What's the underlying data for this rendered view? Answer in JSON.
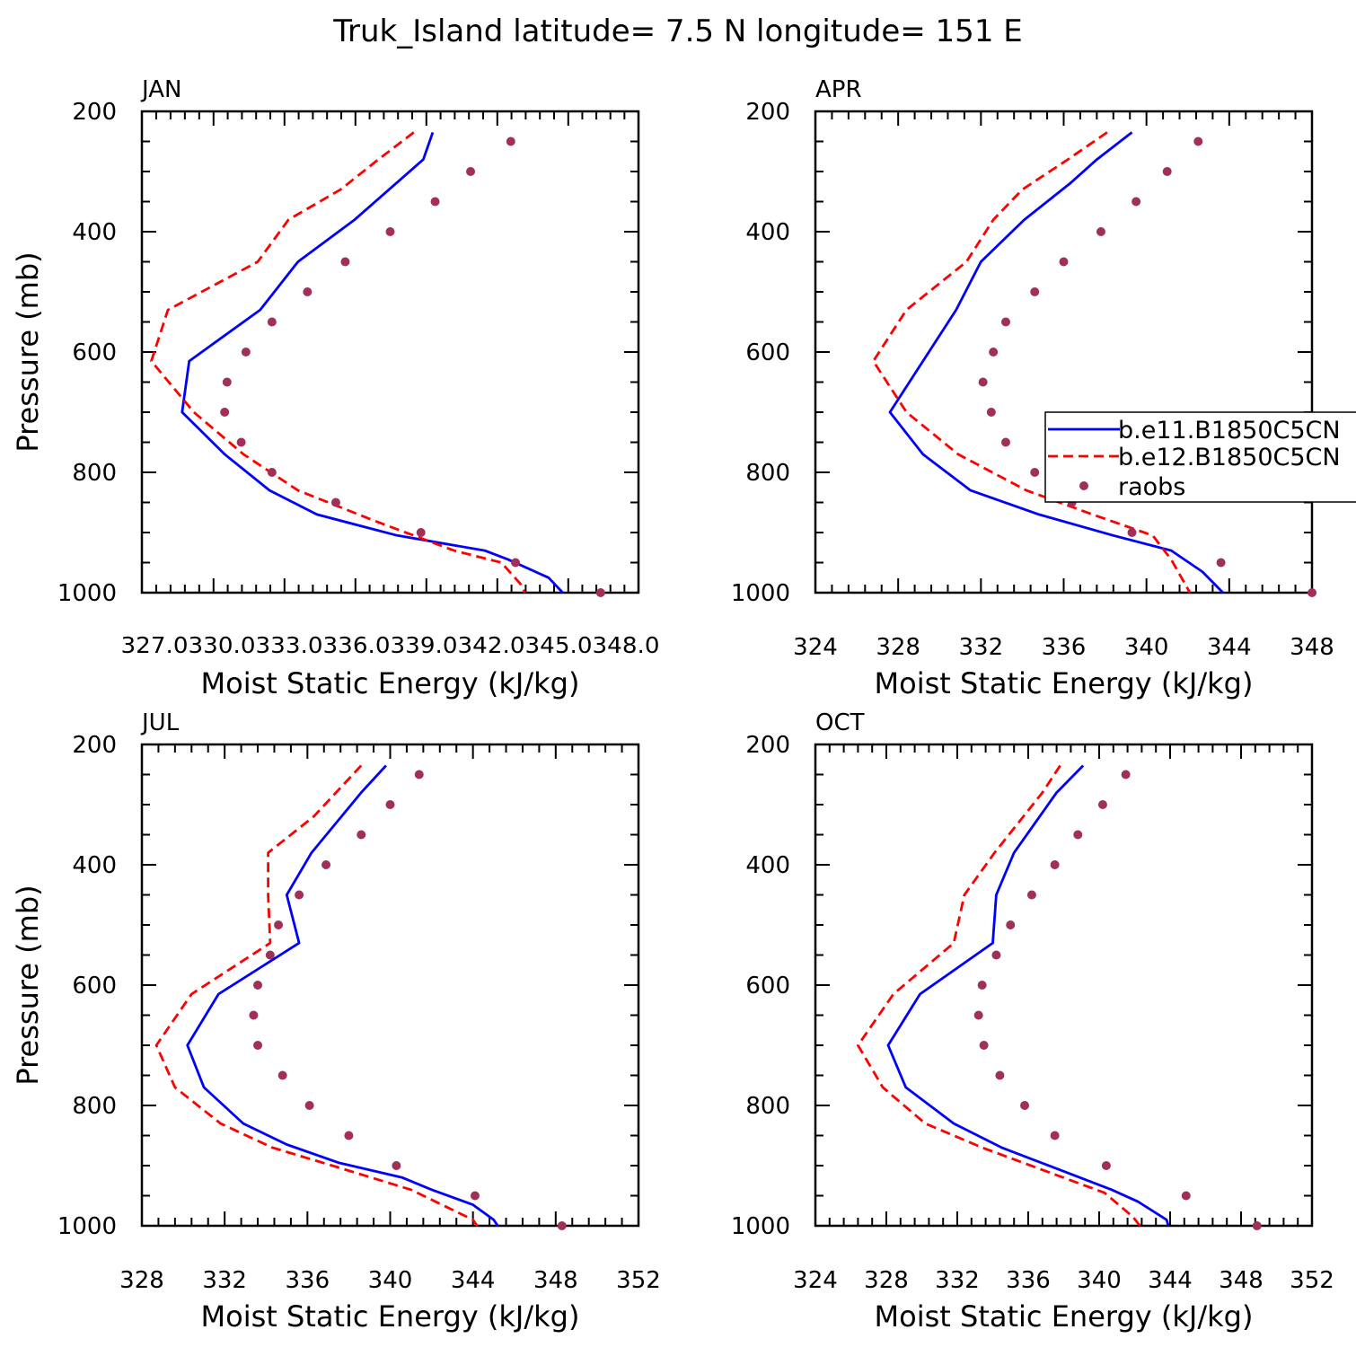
{
  "figure_title": "Truk_Island  latitude= 7.5 N longitude= 151 E",
  "colors": {
    "model1": "#0000ff",
    "model2": "#ff0000",
    "raobs": "#a0305a",
    "axis": "#000000"
  },
  "legend": {
    "entries": [
      {
        "label": "b.e11.B1850C5CN",
        "style": "solid",
        "color": "#0000ff"
      },
      {
        "label": "b.e12.B1850C5CN",
        "style": "dashed",
        "color": "#ff0000"
      },
      {
        "label": "raobs",
        "style": "dot",
        "color": "#a0305a"
      }
    ]
  },
  "chart_data": [
    {
      "type": "line",
      "panel_label": "JAN",
      "xlabel": "Moist Static Energy (kJ/kg)",
      "ylabel": "Pressure (mb)",
      "xlim": [
        327.0,
        348.0
      ],
      "xticks": [
        327.0,
        330.03,
        333.03,
        336.03,
        339.03,
        342.03,
        345.03,
        348.0
      ],
      "xtick_labels": [
        "327.0",
        "330.03",
        "333.03",
        "336.03",
        "339.03",
        "342.03",
        "345.03",
        "348.0"
      ],
      "xtick_text": "327.0330.0333.0336.0339.0342.0345.0348.0",
      "ylim": [
        200,
        1000
      ],
      "yticks": [
        200,
        400,
        600,
        800,
        1000
      ],
      "ytick_labels": [
        "200",
        "400",
        "600",
        "800",
        "1000"
      ],
      "series": [
        {
          "name": "b.e11.B1850C5CN",
          "x": [
            339.3,
            338.9,
            336.0,
            333.6,
            332.0,
            329.0,
            328.7,
            330.5,
            332.4,
            334.4,
            337.8,
            341.5,
            342.5,
            344.2,
            344.8
          ],
          "y": [
            235,
            280,
            380,
            450,
            530,
            615,
            700,
            770,
            830,
            870,
            905,
            930,
            945,
            975,
            1000
          ]
        },
        {
          "name": "b.e12.B1850C5CN",
          "x": [
            338.5,
            337.0,
            335.4,
            333.2,
            331.9,
            328.1,
            327.4,
            329.2,
            331.3,
            333.6,
            336.8,
            340.2,
            342.2,
            343.0,
            343.2
          ],
          "y": [
            235,
            280,
            330,
            380,
            450,
            530,
            615,
            700,
            770,
            830,
            880,
            930,
            950,
            985,
            1000
          ]
        },
        {
          "name": "raobs",
          "x": [
            342.6,
            340.9,
            339.4,
            337.5,
            335.6,
            334.0,
            332.5,
            331.4,
            330.6,
            330.5,
            331.2,
            332.5,
            335.2,
            338.8,
            342.8,
            346.4
          ],
          "y": [
            250,
            300,
            350,
            400,
            450,
            500,
            550,
            600,
            650,
            700,
            750,
            800,
            850,
            900,
            950,
            1000
          ]
        }
      ]
    },
    {
      "type": "line",
      "panel_label": "APR",
      "xlabel": "Moist Static Energy (kJ/kg)",
      "ylabel": "",
      "xlim": [
        324,
        348
      ],
      "xticks": [
        324,
        328,
        332,
        336,
        340,
        344,
        348
      ],
      "xtick_labels": [
        "324",
        "328",
        "332",
        "336",
        "340",
        "344",
        "348"
      ],
      "ylim": [
        200,
        1000
      ],
      "yticks": [
        200,
        400,
        600,
        800,
        1000
      ],
      "ytick_labels": [
        "200",
        "400",
        "600",
        "800",
        "1000"
      ],
      "show_legend": true,
      "series": [
        {
          "name": "b.e11.B1850C5CN",
          "x": [
            339.3,
            337.6,
            336.3,
            334.1,
            332.0,
            330.8,
            329.2,
            327.6,
            329.2,
            331.5,
            334.8,
            338.4,
            341.2,
            342.7,
            343.7
          ],
          "y": [
            235,
            280,
            320,
            380,
            450,
            530,
            615,
            700,
            770,
            830,
            870,
            905,
            930,
            965,
            1000
          ]
        },
        {
          "name": "b.e12.B1850C5CN",
          "x": [
            338.1,
            336.2,
            334.0,
            332.6,
            331.3,
            328.4,
            326.8,
            328.4,
            330.9,
            334.2,
            337.4,
            340.3,
            341.2,
            342.1
          ],
          "y": [
            235,
            280,
            330,
            380,
            450,
            530,
            615,
            700,
            770,
            830,
            870,
            905,
            945,
            1000
          ]
        },
        {
          "name": "raobs",
          "x": [
            342.5,
            341.0,
            339.5,
            337.8,
            336.0,
            334.6,
            333.2,
            332.6,
            332.1,
            332.5,
            333.2,
            334.6,
            336.4,
            339.3,
            343.6,
            348.0
          ],
          "y": [
            250,
            300,
            350,
            400,
            450,
            500,
            550,
            600,
            650,
            700,
            750,
            800,
            850,
            900,
            950,
            1000
          ]
        }
      ]
    },
    {
      "type": "line",
      "panel_label": "JUL",
      "xlabel": "Moist Static Energy (kJ/kg)",
      "ylabel": "Pressure (mb)",
      "xlim": [
        328,
        352
      ],
      "xticks": [
        328,
        332,
        336,
        340,
        344,
        348,
        352
      ],
      "xtick_labels": [
        "328",
        "332",
        "336",
        "340",
        "344",
        "348",
        "352"
      ],
      "ylim": [
        200,
        1000
      ],
      "yticks": [
        200,
        400,
        600,
        800,
        1000
      ],
      "ytick_labels": [
        "200",
        "400",
        "600",
        "800",
        "1000"
      ],
      "series": [
        {
          "name": "b.e11.B1850C5CN",
          "x": [
            339.8,
            338.6,
            336.2,
            335.0,
            335.6,
            331.7,
            330.2,
            331.0,
            332.9,
            335.0,
            337.5,
            340.6,
            342.0,
            344.0,
            345.0,
            345.2
          ],
          "y": [
            235,
            280,
            380,
            450,
            530,
            615,
            700,
            770,
            830,
            865,
            895,
            920,
            940,
            965,
            990,
            1000
          ]
        },
        {
          "name": "b.e12.B1850C5CN",
          "x": [
            338.6,
            336.3,
            334.1,
            334.1,
            334.2,
            330.4,
            328.7,
            329.6,
            331.8,
            334.3,
            337.2,
            341.0,
            344.0,
            344.2
          ],
          "y": [
            235,
            320,
            380,
            450,
            530,
            615,
            700,
            770,
            830,
            870,
            900,
            940,
            990,
            1000
          ]
        },
        {
          "name": "raobs",
          "x": [
            341.4,
            340.0,
            338.6,
            336.9,
            335.6,
            334.6,
            334.2,
            333.6,
            333.4,
            333.6,
            334.8,
            336.1,
            338.0,
            340.3,
            344.1,
            348.3
          ],
          "y": [
            250,
            300,
            350,
            400,
            450,
            500,
            550,
            600,
            650,
            700,
            750,
            800,
            850,
            900,
            950,
            1000
          ]
        }
      ]
    },
    {
      "type": "line",
      "panel_label": "OCT",
      "xlabel": "Moist Static Energy (kJ/kg)",
      "ylabel": "",
      "xlim": [
        324,
        352
      ],
      "xticks": [
        324,
        328,
        332,
        336,
        340,
        344,
        348,
        352
      ],
      "xtick_labels": [
        "324",
        "328",
        "332",
        "336",
        "340",
        "344",
        "348",
        "352"
      ],
      "ylim": [
        200,
        1000
      ],
      "yticks": [
        200,
        400,
        600,
        800,
        1000
      ],
      "ytick_labels": [
        "200",
        "400",
        "600",
        "800",
        "1000"
      ],
      "series": [
        {
          "name": "b.e11.B1850C5CN",
          "x": [
            339.1,
            337.6,
            335.2,
            334.2,
            334.0,
            329.9,
            328.1,
            329.1,
            331.8,
            334.5,
            337.6,
            340.7,
            342.2,
            343.8,
            343.9
          ],
          "y": [
            235,
            280,
            380,
            450,
            530,
            615,
            700,
            770,
            830,
            870,
            905,
            940,
            960,
            990,
            1000
          ]
        },
        {
          "name": "b.e12.B1850C5CN",
          "x": [
            337.8,
            336.8,
            334.1,
            332.4,
            331.8,
            328.4,
            326.4,
            327.8,
            330.2,
            333.4,
            336.6,
            340.3,
            341.9,
            342.3
          ],
          "y": [
            235,
            280,
            380,
            450,
            530,
            615,
            700,
            770,
            830,
            870,
            905,
            945,
            985,
            1000
          ]
        },
        {
          "name": "raobs",
          "x": [
            341.5,
            340.2,
            338.8,
            337.5,
            336.2,
            335.0,
            334.2,
            333.4,
            333.2,
            333.5,
            334.4,
            335.8,
            337.5,
            340.4,
            344.9,
            348.9
          ],
          "y": [
            250,
            300,
            350,
            400,
            450,
            500,
            550,
            600,
            650,
            700,
            750,
            800,
            850,
            900,
            950,
            1000
          ]
        }
      ]
    }
  ]
}
